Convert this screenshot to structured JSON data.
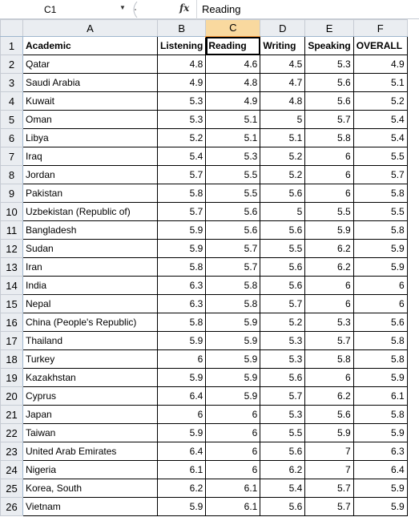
{
  "formula_bar": {
    "name_box": "C1",
    "fx_label": "fx",
    "content": "Reading"
  },
  "sheet": {
    "columns": [
      "A",
      "B",
      "C",
      "D",
      "E",
      "F"
    ],
    "header_row": [
      "Academic",
      "Listening",
      "Reading",
      "Writing",
      "Speaking",
      "OVERALL"
    ],
    "rows": [
      {
        "n": "2",
        "cells": [
          "Qatar",
          "4.8",
          "4.6",
          "4.5",
          "5.3",
          "4.9"
        ]
      },
      {
        "n": "3",
        "cells": [
          "Saudi Arabia",
          "4.9",
          "4.8",
          "4.7",
          "5.6",
          "5.1"
        ]
      },
      {
        "n": "4",
        "cells": [
          "Kuwait",
          "5.3",
          "4.9",
          "4.8",
          "5.6",
          "5.2"
        ]
      },
      {
        "n": "5",
        "cells": [
          "Oman",
          "5.3",
          "5.1",
          "5",
          "5.7",
          "5.4"
        ]
      },
      {
        "n": "6",
        "cells": [
          "Libya",
          "5.2",
          "5.1",
          "5.1",
          "5.8",
          "5.4"
        ]
      },
      {
        "n": "7",
        "cells": [
          "Iraq",
          "5.4",
          "5.3",
          "5.2",
          "6",
          "5.5"
        ]
      },
      {
        "n": "8",
        "cells": [
          "Jordan",
          "5.7",
          "5.5",
          "5.2",
          "6",
          "5.7"
        ]
      },
      {
        "n": "9",
        "cells": [
          "Pakistan",
          "5.8",
          "5.5",
          "5.6",
          "6",
          "5.8"
        ]
      },
      {
        "n": "10",
        "cells": [
          "Uzbekistan (Republic of)",
          "5.7",
          "5.6",
          "5",
          "5.5",
          "5.5"
        ]
      },
      {
        "n": "11",
        "cells": [
          "Bangladesh",
          "5.9",
          "5.6",
          "5.6",
          "5.9",
          "5.8"
        ]
      },
      {
        "n": "12",
        "cells": [
          "Sudan",
          "5.9",
          "5.7",
          "5.5",
          "6.2",
          "5.9"
        ]
      },
      {
        "n": "13",
        "cells": [
          "Iran",
          "5.8",
          "5.7",
          "5.6",
          "6.2",
          "5.9"
        ]
      },
      {
        "n": "14",
        "cells": [
          "India",
          "6.3",
          "5.8",
          "5.6",
          "6",
          "6"
        ]
      },
      {
        "n": "15",
        "cells": [
          "Nepal",
          "6.3",
          "5.8",
          "5.7",
          "6",
          "6"
        ]
      },
      {
        "n": "16",
        "cells": [
          "China (People's Republic)",
          "5.8",
          "5.9",
          "5.2",
          "5.3",
          "5.6"
        ]
      },
      {
        "n": "17",
        "cells": [
          "Thailand",
          "5.9",
          "5.9",
          "5.3",
          "5.7",
          "5.8"
        ]
      },
      {
        "n": "18",
        "cells": [
          "Turkey",
          "6",
          "5.9",
          "5.3",
          "5.8",
          "5.8"
        ]
      },
      {
        "n": "19",
        "cells": [
          "Kazakhstan",
          "5.9",
          "5.9",
          "5.6",
          "6",
          "5.9"
        ]
      },
      {
        "n": "20",
        "cells": [
          "Cyprus",
          "6.4",
          "5.9",
          "5.7",
          "6.2",
          "6.1"
        ]
      },
      {
        "n": "21",
        "cells": [
          "Japan",
          "6",
          "6",
          "5.3",
          "5.6",
          "5.8"
        ]
      },
      {
        "n": "22",
        "cells": [
          "Taiwan",
          "5.9",
          "6",
          "5.5",
          "5.9",
          "5.9"
        ]
      },
      {
        "n": "23",
        "cells": [
          "United Arab Emirates",
          "6.4",
          "6",
          "5.6",
          "7",
          "6.3"
        ]
      },
      {
        "n": "24",
        "cells": [
          "Nigeria",
          "6.1",
          "6",
          "6.2",
          "7",
          "6.4"
        ]
      },
      {
        "n": "25",
        "cells": [
          "Korea, South",
          "6.2",
          "6.1",
          "5.4",
          "5.7",
          "5.9"
        ]
      },
      {
        "n": "26",
        "cells": [
          "Vietnam",
          "5.9",
          "6.1",
          "5.6",
          "5.7",
          "5.9"
        ]
      }
    ]
  },
  "colors": {
    "header_bg": "#eaedf1",
    "selected_header_bg": "#f9d99f",
    "selected_header_border": "#f29436"
  }
}
